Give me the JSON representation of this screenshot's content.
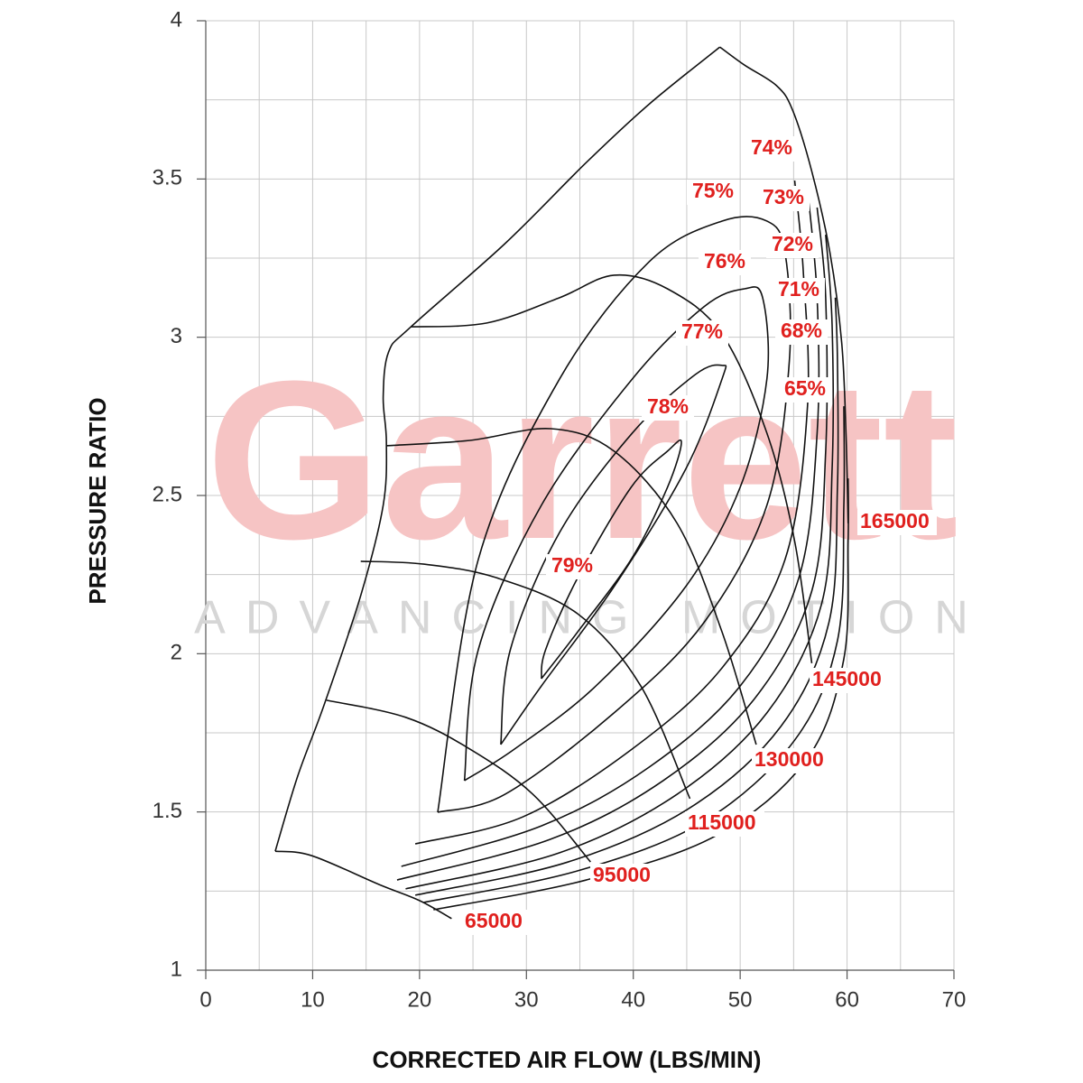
{
  "chart_data": {
    "type": "compressor_map",
    "xlabel": "CORRECTED AIR FLOW (LBS/MIN)",
    "ylabel": "PRESSURE RATIO",
    "xlim": [
      0,
      70
    ],
    "ylim": [
      1,
      4
    ],
    "xticks": [
      0,
      10,
      20,
      30,
      40,
      50,
      60,
      70
    ],
    "yticks": [
      1,
      1.5,
      2,
      2.5,
      3,
      3.5,
      4
    ],
    "xgrid": [
      5,
      10,
      15,
      20,
      25,
      30,
      35,
      40,
      45,
      50,
      55,
      60,
      65,
      70
    ],
    "ygrid": [
      1.25,
      1.5,
      1.75,
      2,
      2.25,
      2.5,
      2.75,
      3,
      3.25,
      3.5,
      3.75,
      4
    ],
    "grid": true,
    "line_color": "#111111",
    "label_color": "#e0201e",
    "watermark": {
      "brand": "Garrett",
      "tagline": "ADVANCING MOTION",
      "brand_color": "#f6c4c4",
      "tagline_color": "#d6d6d6"
    },
    "surge_line": {
      "x": [
        6.5,
        8.6,
        11.1,
        14.5,
        16.6,
        16.9,
        16.6,
        17.1,
        19.2,
        28.0,
        35.6,
        41.5,
        48.1
      ],
      "y": [
        1.376,
        1.613,
        1.841,
        2.184,
        2.469,
        2.668,
        2.811,
        2.953,
        3.033,
        3.296,
        3.552,
        3.737,
        3.917
      ]
    },
    "speed_lines": [
      {
        "speed": 65000,
        "x": [
          6.5,
          9.9,
          16.2,
          20.0,
          23.0
        ],
        "y": [
          1.376,
          1.362,
          1.271,
          1.22,
          1.163
        ]
      },
      {
        "speed": 95000,
        "x": [
          11.3,
          18.7,
          24.7,
          30.6,
          36.0
        ],
        "y": [
          1.853,
          1.799,
          1.699,
          1.556,
          1.342
        ]
      },
      {
        "speed": 115000,
        "x": [
          14.5,
          20.4,
          27.2,
          34.8,
          40.7,
          45.3
        ],
        "y": [
          2.292,
          2.283,
          2.24,
          2.126,
          1.898,
          1.542
        ]
      },
      {
        "speed": 130000,
        "x": [
          16.9,
          24.7,
          32.3,
          38.2,
          44.1,
          48.3,
          51.5
        ],
        "y": [
          2.657,
          2.674,
          2.711,
          2.64,
          2.412,
          2.069,
          1.713
        ]
      },
      {
        "speed": 145000,
        "x": [
          19.2,
          26.3,
          33.1,
          38.2,
          43.2,
          48.3,
          52.5,
          55.1,
          56.7
        ],
        "y": [
          3.033,
          3.045,
          3.125,
          3.196,
          3.153,
          3.01,
          2.697,
          2.355,
          1.97
        ]
      },
      {
        "speed": 165000,
        "x": [
          48.1,
          50.4,
          53.4,
          54.9,
          56.7,
          58.4,
          59.5,
          59.9,
          60.1
        ],
        "y": [
          3.917,
          3.86,
          3.795,
          3.718,
          3.524,
          3.267,
          2.982,
          2.697,
          2.412
        ]
      }
    ],
    "efficiency_contours": [
      {
        "efficiency": {
          "value": 79,
          "label": "79%"
        },
        "x": [
          31.4,
          34.8,
          39.8,
          43.2,
          44.5,
          43.2,
          39.8,
          34.8,
          31.8,
          31.4
        ],
        "y": [
          1.921,
          2.069,
          2.298,
          2.526,
          2.668,
          2.64,
          2.526,
          2.24,
          2.013,
          1.921
        ]
      },
      {
        "efficiency": {
          "value": 78,
          "label": "78%"
        },
        "x": [
          27.6,
          31.4,
          38.2,
          44.9,
          48.3,
          48.3,
          45.8,
          39.9,
          33.1,
          28.5,
          27.6
        ],
        "y": [
          1.713,
          1.898,
          2.212,
          2.583,
          2.868,
          2.911,
          2.882,
          2.697,
          2.383,
          2.013,
          1.713
        ]
      },
      {
        "efficiency": {
          "value": 77,
          "label": "77%"
        },
        "x": [
          24.2,
          28.9,
          36.5,
          44.9,
          50.0,
          52.5,
          52.1,
          50.4,
          46.6,
          39.9,
          31.4,
          25.5,
          24.2
        ],
        "y": [
          1.599,
          1.699,
          1.898,
          2.212,
          2.526,
          2.868,
          3.125,
          3.153,
          3.096,
          2.868,
          2.469,
          2.013,
          1.599
        ]
      },
      {
        "efficiency": {
          "value": 76,
          "label": "76%"
        },
        "x": [
          21.7,
          28.0,
          38.2,
          46.6,
          52.5,
          54.6,
          54.2,
          52.5,
          48.3,
          41.5,
          33.1,
          25.5,
          21.7
        ],
        "y": [
          1.499,
          1.556,
          1.813,
          2.098,
          2.469,
          2.925,
          3.267,
          3.367,
          3.367,
          3.239,
          2.868,
          2.298,
          1.499
        ]
      },
      {
        "efficiency": {
          "value": 75,
          "label": "75%"
        },
        "x": [
          19.6,
          29.7,
          39.9,
          48.3,
          54.2,
          56.3,
          55.9,
          55.1
        ],
        "y": [
          1.399,
          1.485,
          1.699,
          1.955,
          2.298,
          2.782,
          3.21,
          3.495
        ]
      },
      {
        "efficiency": {
          "value": 74,
          "label": "74%"
        },
        "x": [
          18.3,
          31.4,
          41.5,
          50.0,
          55.5,
          57.2,
          57.2,
          56.3
        ],
        "y": [
          1.328,
          1.456,
          1.642,
          1.898,
          2.241,
          2.697,
          3.125,
          3.467
        ]
      },
      {
        "efficiency": {
          "value": 73,
          "label": "73%"
        },
        "x": [
          17.9,
          32.2,
          42.8,
          51.3,
          56.7,
          58.0,
          58.0,
          57.2
        ],
        "y": [
          1.285,
          1.413,
          1.599,
          1.856,
          2.198,
          2.64,
          3.125,
          3.41
        ]
      },
      {
        "efficiency": {
          "value": 72,
          "label": "72%"
        },
        "x": [
          18.7,
          33.1,
          44.1,
          52.5,
          57.6,
          58.6,
          58.6,
          58.0
        ],
        "y": [
          1.257,
          1.371,
          1.556,
          1.813,
          2.155,
          2.583,
          3.039,
          3.324
        ]
      },
      {
        "efficiency": {
          "value": 71,
          "label": "71%"
        },
        "x": [
          19.6,
          33.9,
          45.3,
          53.8,
          58.3,
          59.1,
          59.1,
          58.9
        ],
        "y": [
          1.237,
          1.342,
          1.513,
          1.77,
          2.098,
          2.526,
          2.925,
          3.125
        ]
      },
      {
        "efficiency": {
          "value": 68,
          "label": "68%"
        },
        "x": [
          20.4,
          34.8,
          46.6,
          55.1,
          59.1,
          59.7,
          59.7
        ],
        "y": [
          1.214,
          1.314,
          1.47,
          1.727,
          2.041,
          2.469,
          2.782
        ]
      },
      {
        "efficiency": {
          "value": 65,
          "label": "65%"
        },
        "x": [
          21.3,
          35.6,
          47.9,
          56.3,
          59.7,
          60.1,
          60.1
        ],
        "y": [
          1.191,
          1.285,
          1.428,
          1.67,
          1.984,
          2.355,
          2.554
        ]
      }
    ]
  }
}
